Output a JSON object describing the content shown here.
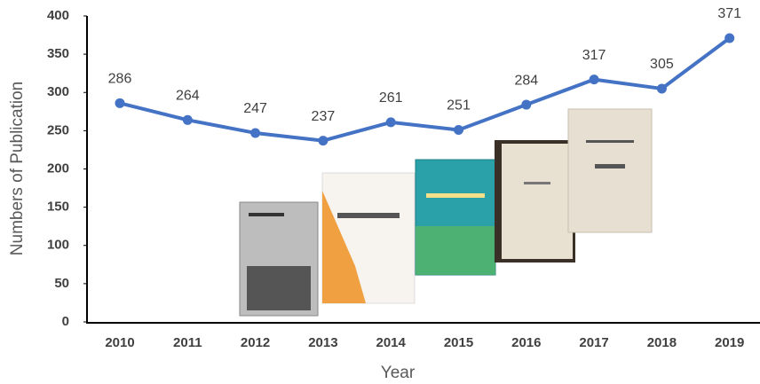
{
  "chart_data": {
    "type": "line",
    "x_label": "Year",
    "y_label": "Numbers of Publication",
    "categories": [
      "2010",
      "2011",
      "2012",
      "2013",
      "2014",
      "2015",
      "2016",
      "2017",
      "2018",
      "2019"
    ],
    "values": [
      286,
      264,
      247,
      237,
      261,
      251,
      284,
      317,
      305,
      371
    ],
    "color": "#4472c4",
    "ylim": [
      0,
      400
    ],
    "yticks": [
      0,
      50,
      100,
      150,
      200,
      250,
      300,
      350,
      400
    ],
    "grid": false
  }
}
